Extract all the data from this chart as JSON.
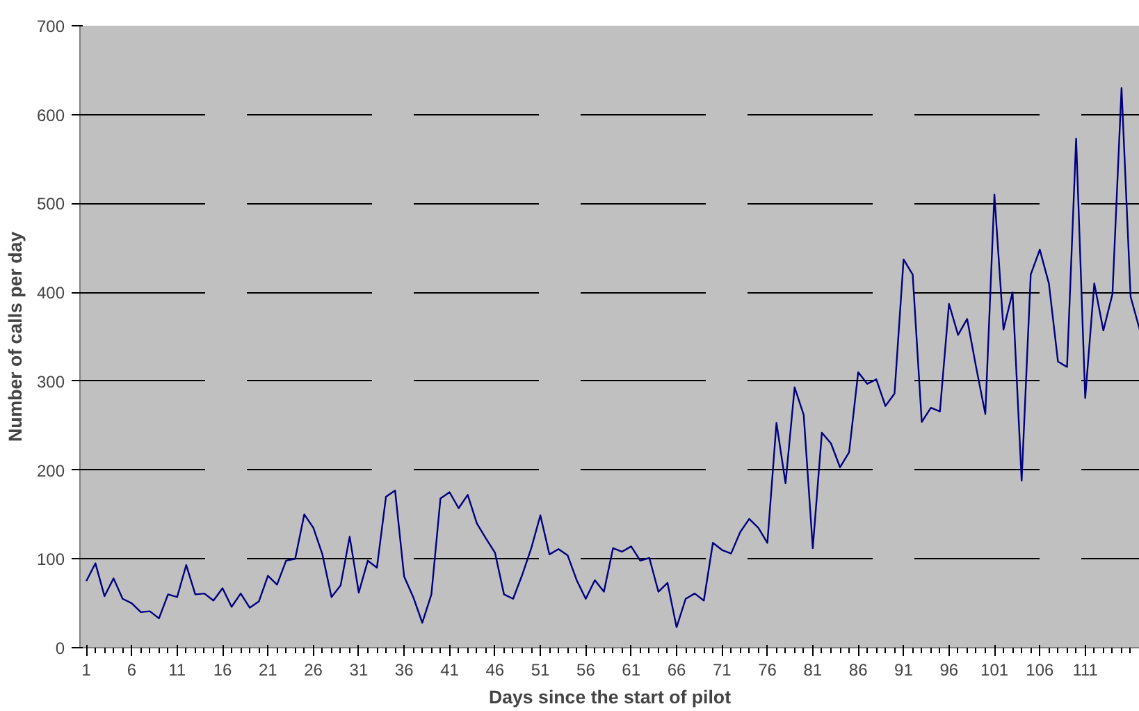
{
  "chart_data": {
    "type": "line",
    "xlabel": "Days since the start of pilot",
    "ylabel": "Number of calls per day",
    "x": [
      1,
      2,
      3,
      4,
      5,
      6,
      7,
      8,
      9,
      10,
      11,
      12,
      13,
      14,
      15,
      16,
      17,
      18,
      19,
      20,
      21,
      22,
      23,
      24,
      25,
      26,
      27,
      28,
      29,
      30,
      31,
      32,
      33,
      34,
      35,
      36,
      37,
      38,
      39,
      40,
      41,
      42,
      43,
      44,
      45,
      46,
      47,
      48,
      49,
      50,
      51,
      52,
      53,
      54,
      55,
      56,
      57,
      58,
      59,
      60,
      61,
      62,
      63,
      64,
      65,
      66,
      67,
      68,
      69,
      70,
      71,
      72,
      73,
      74,
      75,
      76,
      77,
      78,
      79,
      80,
      81,
      82,
      83,
      84,
      85,
      86,
      87,
      88,
      89,
      90,
      91,
      92,
      93,
      94,
      95,
      96,
      97,
      98,
      99,
      100,
      101,
      102,
      103,
      104,
      105,
      106,
      107,
      108,
      109,
      110,
      111,
      112,
      113,
      114,
      115,
      116,
      117
    ],
    "series": [
      {
        "color": "#000080",
        "values": [
          75,
          95,
          58,
          78,
          55,
          50,
          40,
          41,
          33,
          60,
          57,
          93,
          60,
          61,
          53,
          67,
          46,
          61,
          45,
          52,
          81,
          71,
          98,
          100,
          150,
          135,
          105,
          57,
          70,
          125,
          62,
          98,
          90,
          170,
          177,
          80,
          57,
          28,
          60,
          168,
          175,
          157,
          172,
          140,
          123,
          107,
          60,
          55,
          82,
          112,
          149,
          105,
          111,
          104,
          76,
          55,
          76,
          63,
          112,
          108,
          114,
          98,
          101,
          63,
          73,
          23,
          55,
          61,
          53,
          118,
          110,
          106,
          130,
          145,
          135,
          118,
          253,
          185,
          293,
          262,
          112,
          242,
          230,
          203,
          220,
          310,
          297,
          302,
          272,
          286,
          437,
          420,
          254,
          270,
          266,
          387,
          352,
          370,
          315,
          263,
          510,
          358,
          400,
          188,
          420,
          448,
          410,
          322,
          316,
          573,
          281,
          410,
          357,
          398,
          630,
          395,
          358
        ]
      }
    ],
    "xlim": [
      0.3,
      117
    ],
    "xticks": [
      1,
      6,
      11,
      16,
      21,
      26,
      31,
      36,
      41,
      46,
      51,
      56,
      61,
      66,
      71,
      76,
      81,
      86,
      91,
      96,
      101,
      106,
      111
    ],
    "ylim": [
      0,
      700
    ],
    "yticks": [
      0,
      100,
      200,
      300,
      400,
      500,
      600,
      700
    ],
    "grid": "y",
    "marker": "none",
    "line_style": "solid"
  }
}
